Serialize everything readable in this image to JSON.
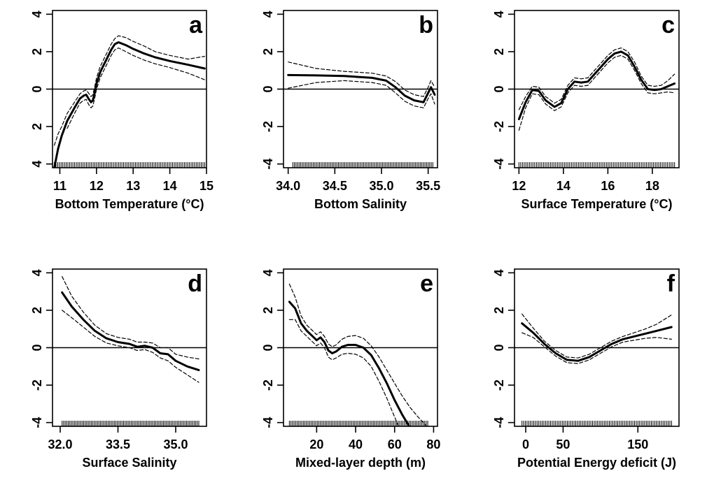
{
  "chart_data": [
    {
      "type": "line",
      "panel_label": "a",
      "xlabel": "Bottom Temperature (°C)",
      "xlim": [
        10.8,
        15.0
      ],
      "ylim": [
        -4.2,
        4.2
      ],
      "xticks": [
        11,
        12,
        13,
        14,
        15
      ],
      "yticks": [
        4,
        2,
        0,
        -2,
        -4
      ],
      "ytick_labels": [
        "4",
        "2",
        "0",
        "2",
        "4"
      ],
      "zero_line": 0,
      "series": [
        {
          "role": "fit",
          "x": [
            10.85,
            10.95,
            11.05,
            11.2,
            11.4,
            11.55,
            11.65,
            11.72,
            11.78,
            11.85,
            11.9,
            11.95,
            12.0,
            12.1,
            12.2,
            12.3,
            12.4,
            12.5,
            12.6,
            12.8,
            13.0,
            13.3,
            13.6,
            14.0,
            14.5,
            14.95
          ],
          "y": [
            -4.2,
            -3.2,
            -2.5,
            -1.7,
            -1.0,
            -0.5,
            -0.35,
            -0.3,
            -0.5,
            -0.7,
            -0.6,
            -0.2,
            0.3,
            0.9,
            1.3,
            1.7,
            2.1,
            2.4,
            2.5,
            2.35,
            2.15,
            1.9,
            1.7,
            1.5,
            1.3,
            1.1
          ]
        },
        {
          "role": "upper-se",
          "x": [
            10.85,
            10.95,
            11.05,
            11.2,
            11.4,
            11.55,
            11.65,
            11.72,
            11.78,
            11.85,
            11.9,
            11.95,
            12.0,
            12.1,
            12.2,
            12.3,
            12.4,
            12.5,
            12.6,
            12.8,
            13.0,
            13.3,
            13.6,
            14.0,
            14.5,
            14.95
          ],
          "y": [
            -3.0,
            -2.4,
            -2.0,
            -1.3,
            -0.7,
            -0.25,
            -0.1,
            -0.05,
            -0.2,
            -0.4,
            -0.3,
            0.1,
            0.6,
            1.2,
            1.6,
            2.0,
            2.4,
            2.7,
            2.85,
            2.75,
            2.55,
            2.3,
            2.0,
            1.8,
            1.6,
            1.75
          ]
        },
        {
          "role": "lower-se",
          "x": [
            11.2,
            11.4,
            11.55,
            11.65,
            11.72,
            11.78,
            11.85,
            11.9,
            11.95,
            12.0,
            12.1,
            12.2,
            12.3,
            12.4,
            12.5,
            12.6,
            12.8,
            13.0,
            13.3,
            13.6,
            14.0,
            14.5,
            14.95
          ],
          "y": [
            -2.1,
            -1.3,
            -0.75,
            -0.6,
            -0.55,
            -0.8,
            -1.0,
            -0.9,
            -0.5,
            0.0,
            0.6,
            1.0,
            1.4,
            1.8,
            2.1,
            2.2,
            2.0,
            1.8,
            1.55,
            1.35,
            1.15,
            0.85,
            0.5
          ]
        }
      ],
      "rug_range": [
        10.85,
        14.95
      ]
    },
    {
      "type": "line",
      "panel_label": "b",
      "xlabel": "Bottom Salinity",
      "xlim": [
        33.95,
        35.6
      ],
      "ylim": [
        -4.2,
        4.2
      ],
      "xticks": [
        34.0,
        34.5,
        35.0,
        35.5
      ],
      "xtick_labels": [
        "34.0",
        "34.5",
        "35.0",
        "35.5"
      ],
      "yticks": [
        4,
        2,
        0,
        -2,
        -4
      ],
      "zero_line": 0,
      "series": [
        {
          "role": "fit",
          "x": [
            34.0,
            34.3,
            34.6,
            34.9,
            35.05,
            35.15,
            35.25,
            35.35,
            35.45,
            35.5,
            35.53,
            35.57
          ],
          "y": [
            0.75,
            0.73,
            0.7,
            0.6,
            0.45,
            0.1,
            -0.35,
            -0.6,
            -0.7,
            -0.2,
            0.1,
            -0.3
          ]
        },
        {
          "role": "upper-se",
          "x": [
            34.0,
            34.3,
            34.6,
            34.9,
            35.05,
            35.15,
            35.25,
            35.35,
            35.45,
            35.5,
            35.53,
            35.57
          ],
          "y": [
            1.45,
            1.1,
            0.95,
            0.85,
            0.7,
            0.4,
            -0.05,
            -0.3,
            -0.4,
            0.1,
            0.45,
            0.1
          ]
        },
        {
          "role": "lower-se",
          "x": [
            34.0,
            34.3,
            34.6,
            34.9,
            35.05,
            35.15,
            35.25,
            35.35,
            35.45,
            35.5,
            35.53,
            35.57
          ],
          "y": [
            0.05,
            0.35,
            0.45,
            0.35,
            0.2,
            -0.2,
            -0.65,
            -0.9,
            -1.0,
            -0.5,
            -0.25,
            -0.8
          ]
        }
      ],
      "rug_range": [
        34.05,
        35.55
      ]
    },
    {
      "type": "line",
      "panel_label": "c",
      "xlabel": "Surface Temperature (°C)",
      "xlim": [
        11.8,
        19.2
      ],
      "ylim": [
        -4.2,
        4.2
      ],
      "xticks": [
        12,
        14,
        16,
        18
      ],
      "yticks": [
        4,
        2,
        0,
        -2,
        -4
      ],
      "zero_line": 0,
      "series": [
        {
          "role": "fit",
          "x": [
            12.0,
            12.3,
            12.6,
            12.9,
            13.2,
            13.6,
            13.9,
            14.2,
            14.5,
            14.8,
            15.1,
            15.4,
            15.7,
            16.0,
            16.3,
            16.6,
            16.9,
            17.2,
            17.5,
            17.8,
            18.1,
            18.4,
            18.7,
            19.0
          ],
          "y": [
            -1.6,
            -0.7,
            -0.05,
            -0.1,
            -0.6,
            -0.95,
            -0.75,
            0.0,
            0.4,
            0.35,
            0.4,
            0.8,
            1.2,
            1.6,
            1.9,
            2.0,
            1.8,
            1.2,
            0.5,
            0.0,
            -0.05,
            0.0,
            0.15,
            0.3
          ]
        },
        {
          "role": "upper-se",
          "x": [
            12.0,
            12.3,
            12.6,
            12.9,
            13.2,
            13.6,
            13.9,
            14.2,
            14.5,
            14.8,
            15.1,
            15.4,
            15.7,
            16.0,
            16.3,
            16.6,
            16.9,
            17.2,
            17.5,
            17.8,
            18.1,
            18.4,
            18.7,
            19.0
          ],
          "y": [
            -1.1,
            -0.4,
            0.15,
            0.1,
            -0.4,
            -0.75,
            -0.55,
            0.2,
            0.6,
            0.55,
            0.6,
            1.0,
            1.4,
            1.8,
            2.1,
            2.2,
            2.0,
            1.45,
            0.7,
            0.2,
            0.15,
            0.2,
            0.45,
            0.8
          ]
        },
        {
          "role": "lower-se",
          "x": [
            12.0,
            12.3,
            12.6,
            12.9,
            13.2,
            13.6,
            13.9,
            14.2,
            14.5,
            14.8,
            15.1,
            15.4,
            15.7,
            16.0,
            16.3,
            16.6,
            16.9,
            17.2,
            17.5,
            17.8,
            18.1,
            18.4,
            18.7,
            19.0
          ],
          "y": [
            -2.2,
            -1.0,
            -0.25,
            -0.3,
            -0.8,
            -1.15,
            -0.95,
            -0.2,
            0.2,
            0.15,
            0.2,
            0.6,
            1.0,
            1.4,
            1.7,
            1.8,
            1.6,
            1.0,
            0.3,
            -0.2,
            -0.25,
            -0.2,
            -0.15,
            -0.2
          ]
        }
      ],
      "rug_range": [
        12.0,
        19.0
      ]
    },
    {
      "type": "line",
      "panel_label": "d",
      "xlabel": "Surface Salinity",
      "xlim": [
        31.8,
        35.8
      ],
      "ylim": [
        -4.2,
        4.2
      ],
      "xticks": [
        32.0,
        33.5,
        35.0
      ],
      "xtick_labels": [
        "32.0",
        "33.5",
        "35.0"
      ],
      "yticks": [
        4,
        2,
        0,
        -2,
        -4
      ],
      "zero_line": 0,
      "series": [
        {
          "role": "fit",
          "x": [
            32.05,
            32.3,
            32.6,
            32.9,
            33.2,
            33.5,
            33.8,
            34.0,
            34.2,
            34.4,
            34.6,
            34.8,
            35.0,
            35.3,
            35.6
          ],
          "y": [
            2.95,
            2.2,
            1.5,
            0.9,
            0.5,
            0.3,
            0.2,
            0.05,
            0.1,
            0.0,
            -0.3,
            -0.35,
            -0.7,
            -1.0,
            -1.2
          ]
        },
        {
          "role": "upper-se",
          "x": [
            32.05,
            32.3,
            32.6,
            32.9,
            33.2,
            33.5,
            33.8,
            34.0,
            34.2,
            34.4,
            34.6,
            34.8,
            35.0,
            35.3,
            35.6
          ],
          "y": [
            3.8,
            2.75,
            1.9,
            1.2,
            0.75,
            0.55,
            0.45,
            0.3,
            0.3,
            0.25,
            0.0,
            0.0,
            -0.35,
            -0.5,
            -0.6
          ]
        },
        {
          "role": "lower-se",
          "x": [
            32.05,
            32.3,
            32.6,
            32.9,
            33.2,
            33.5,
            33.8,
            34.0,
            34.2,
            34.4,
            34.6,
            34.8,
            35.0,
            35.3,
            35.6
          ],
          "y": [
            2.0,
            1.6,
            1.1,
            0.6,
            0.25,
            0.1,
            0.0,
            -0.15,
            -0.1,
            -0.25,
            -0.55,
            -0.7,
            -1.05,
            -1.45,
            -1.85
          ]
        }
      ],
      "rug_range": [
        32.05,
        35.6
      ]
    },
    {
      "type": "line",
      "panel_label": "e",
      "xlabel": "Mixed-layer depth (m)",
      "xlim": [
        3,
        82
      ],
      "ylim": [
        -4.2,
        4.2
      ],
      "xticks": [
        20,
        40,
        60,
        80
      ],
      "yticks": [
        4,
        2,
        0,
        -2,
        -4
      ],
      "zero_line": 0,
      "series": [
        {
          "role": "fit",
          "x": [
            6,
            9,
            12,
            15,
            18,
            20,
            22,
            24,
            26,
            28,
            30,
            33,
            36,
            40,
            44,
            48,
            52,
            56,
            60,
            64,
            67.5
          ],
          "y": [
            2.45,
            2.1,
            1.3,
            0.9,
            0.6,
            0.4,
            0.55,
            0.3,
            -0.15,
            -0.3,
            -0.2,
            0.05,
            0.15,
            0.15,
            0.0,
            -0.4,
            -1.1,
            -1.9,
            -2.8,
            -3.6,
            -4.2
          ]
        },
        {
          "role": "upper-se",
          "x": [
            6,
            9,
            12,
            15,
            18,
            20,
            22,
            24,
            26,
            28,
            30,
            33,
            36,
            40,
            44,
            48,
            52,
            56,
            60,
            64,
            68,
            72,
            76.5
          ],
          "y": [
            3.4,
            2.7,
            1.7,
            1.2,
            0.9,
            0.7,
            0.85,
            0.6,
            0.2,
            0.05,
            0.15,
            0.45,
            0.6,
            0.65,
            0.5,
            0.1,
            -0.5,
            -1.2,
            -1.9,
            -2.6,
            -3.2,
            -3.7,
            -4.2
          ]
        },
        {
          "role": "lower-se",
          "x": [
            6,
            9,
            12,
            15,
            18,
            20,
            22,
            24,
            26,
            28,
            30,
            33,
            36,
            40,
            44,
            48,
            52,
            56,
            60,
            62
          ],
          "y": [
            1.5,
            1.5,
            0.9,
            0.6,
            0.3,
            0.1,
            0.25,
            0.0,
            -0.5,
            -0.65,
            -0.55,
            -0.35,
            -0.3,
            -0.35,
            -0.55,
            -1.0,
            -1.8,
            -2.7,
            -3.7,
            -4.2
          ]
        }
      ],
      "rug_range": [
        6,
        77
      ]
    },
    {
      "type": "line",
      "panel_label": "f",
      "xlabel": "Potential Energy deficit (J)",
      "xlim": [
        -15,
        205
      ],
      "ylim": [
        -4.2,
        4.2
      ],
      "xticks": [
        0,
        50,
        150
      ],
      "yticks": [
        4,
        2,
        0,
        -2,
        -4
      ],
      "zero_line": 0,
      "series": [
        {
          "role": "fit",
          "x": [
            -5,
            10,
            25,
            40,
            55,
            70,
            85,
            100,
            115,
            130,
            145,
            160,
            175,
            195
          ],
          "y": [
            1.3,
            0.8,
            0.2,
            -0.3,
            -0.65,
            -0.7,
            -0.5,
            -0.15,
            0.2,
            0.45,
            0.6,
            0.75,
            0.9,
            1.1
          ]
        },
        {
          "role": "upper-se",
          "x": [
            -5,
            10,
            25,
            40,
            55,
            70,
            85,
            100,
            115,
            130,
            145,
            160,
            175,
            195
          ],
          "y": [
            1.8,
            1.05,
            0.35,
            -0.15,
            -0.5,
            -0.55,
            -0.35,
            0.0,
            0.35,
            0.6,
            0.8,
            1.0,
            1.25,
            1.75
          ]
        },
        {
          "role": "lower-se",
          "x": [
            -5,
            10,
            25,
            40,
            55,
            70,
            85,
            100,
            115,
            130,
            145,
            160,
            175,
            195
          ],
          "y": [
            0.8,
            0.55,
            0.05,
            -0.45,
            -0.8,
            -0.85,
            -0.65,
            -0.3,
            0.05,
            0.3,
            0.4,
            0.5,
            0.55,
            0.45
          ]
        }
      ],
      "rug_range": [
        -5,
        195
      ]
    }
  ]
}
